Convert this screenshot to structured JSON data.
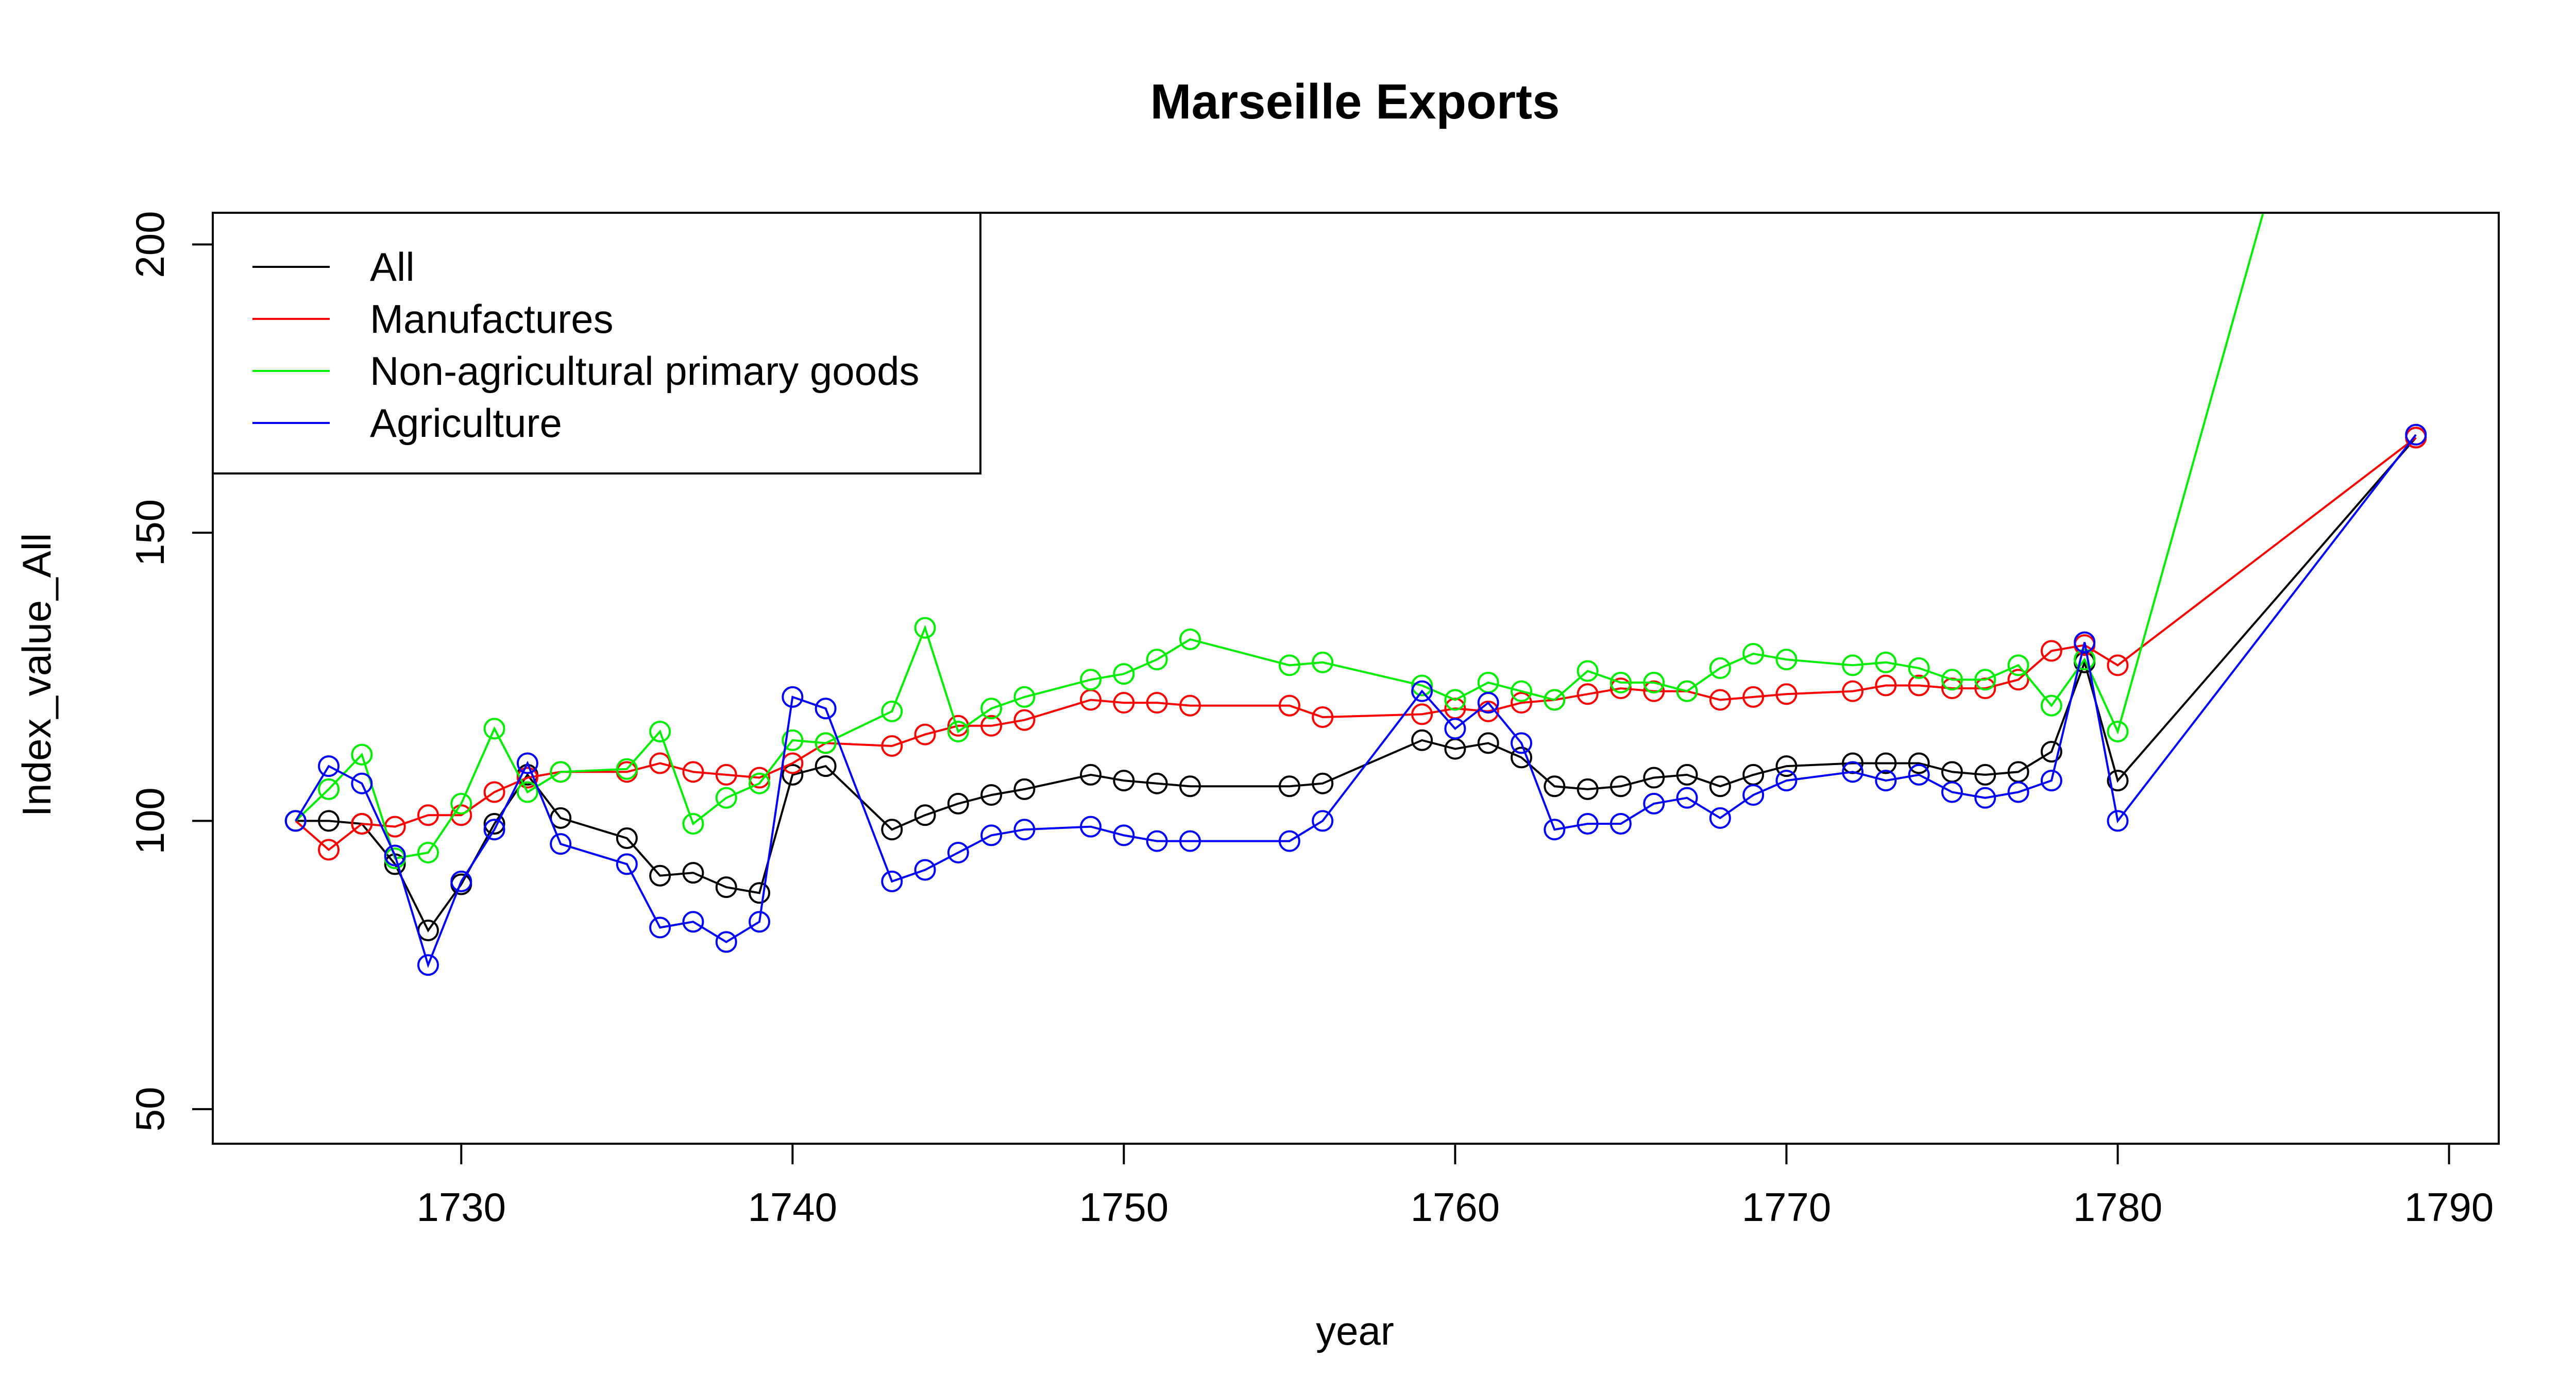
{
  "chart_data": {
    "type": "line",
    "title": "Marseille Exports",
    "xlabel": "year",
    "ylabel": "Index_value_All",
    "xlim": [
      1722.5,
      1791.5
    ],
    "ylim": [
      44,
      205.5
    ],
    "x_ticks": [
      1730,
      1740,
      1750,
      1760,
      1770,
      1780,
      1790
    ],
    "y_ticks": [
      50,
      100,
      150,
      200
    ],
    "grid": false,
    "legend_position": "top-left",
    "markers": "open-circle",
    "series": [
      {
        "name": "All",
        "color": "#000000",
        "points": [
          [
            1725,
            100
          ],
          [
            1726,
            100
          ],
          [
            1727,
            99.5
          ],
          [
            1728,
            92.5
          ],
          [
            1729,
            81
          ],
          [
            1730,
            89
          ],
          [
            1731,
            99.5
          ],
          [
            1732,
            108
          ],
          [
            1733,
            100.5
          ],
          [
            1735,
            97
          ],
          [
            1736,
            90.5
          ],
          [
            1737,
            91
          ],
          [
            1738,
            88.5
          ],
          [
            1739,
            87.5
          ],
          [
            1740,
            108
          ],
          [
            1741,
            109.5
          ],
          [
            1743,
            98.5
          ],
          [
            1744,
            101
          ],
          [
            1745,
            103
          ],
          [
            1746,
            104.5
          ],
          [
            1747,
            105.5
          ],
          [
            1749,
            108
          ],
          [
            1750,
            107
          ],
          [
            1751,
            106.5
          ],
          [
            1752,
            106
          ],
          [
            1755,
            106
          ],
          [
            1756,
            106.5
          ],
          [
            1759,
            114
          ],
          [
            1760,
            112.5
          ],
          [
            1761,
            113.5
          ],
          [
            1762,
            111
          ],
          [
            1763,
            106
          ],
          [
            1764,
            105.5
          ],
          [
            1765,
            106
          ],
          [
            1766,
            107.5
          ],
          [
            1767,
            108
          ],
          [
            1768,
            106
          ],
          [
            1769,
            108
          ],
          [
            1770,
            109.5
          ],
          [
            1772,
            110
          ],
          [
            1773,
            110
          ],
          [
            1774,
            110
          ],
          [
            1775,
            108.5
          ],
          [
            1776,
            108
          ],
          [
            1777,
            108.5
          ],
          [
            1778,
            112
          ],
          [
            1779,
            127.5
          ],
          [
            1780,
            107
          ],
          [
            1789,
            166.5
          ]
        ]
      },
      {
        "name": "Manufactures",
        "color": "#ff0000",
        "points": [
          [
            1725,
            100
          ],
          [
            1726,
            95
          ],
          [
            1727,
            99.5
          ],
          [
            1728,
            99
          ],
          [
            1729,
            101
          ],
          [
            1730,
            101
          ],
          [
            1731,
            105
          ],
          [
            1732,
            107.5
          ],
          [
            1733,
            108.5
          ],
          [
            1735,
            108.5
          ],
          [
            1736,
            110
          ],
          [
            1737,
            108.5
          ],
          [
            1738,
            108
          ],
          [
            1739,
            107.5
          ],
          [
            1740,
            110
          ],
          [
            1741,
            113.5
          ],
          [
            1743,
            113
          ],
          [
            1744,
            115
          ],
          [
            1745,
            116.5
          ],
          [
            1746,
            116.5
          ],
          [
            1747,
            117.5
          ],
          [
            1749,
            121
          ],
          [
            1750,
            120.5
          ],
          [
            1751,
            120.5
          ],
          [
            1752,
            120
          ],
          [
            1755,
            120
          ],
          [
            1756,
            118
          ],
          [
            1759,
            118.5
          ],
          [
            1760,
            119.5
          ],
          [
            1761,
            119
          ],
          [
            1762,
            120.5
          ],
          [
            1763,
            121
          ],
          [
            1764,
            122
          ],
          [
            1765,
            123
          ],
          [
            1766,
            122.5
          ],
          [
            1767,
            122.5
          ],
          [
            1768,
            121
          ],
          [
            1769,
            121.5
          ],
          [
            1770,
            122
          ],
          [
            1772,
            122.5
          ],
          [
            1773,
            123.5
          ],
          [
            1774,
            123.5
          ],
          [
            1775,
            123
          ],
          [
            1776,
            123
          ],
          [
            1777,
            124.5
          ],
          [
            1778,
            129.5
          ],
          [
            1779,
            130.5
          ],
          [
            1780,
            127
          ],
          [
            1789,
            166.5
          ]
        ]
      },
      {
        "name": "Non-agricultural primary goods",
        "color": "#00ee00",
        "points": [
          [
            1725,
            100
          ],
          [
            1726,
            105.5
          ],
          [
            1727,
            111.5
          ],
          [
            1728,
            93.5
          ],
          [
            1729,
            94.5
          ],
          [
            1730,
            103
          ],
          [
            1731,
            116
          ],
          [
            1732,
            105
          ],
          [
            1733,
            108.5
          ],
          [
            1735,
            109
          ],
          [
            1736,
            115.5
          ],
          [
            1737,
            99.5
          ],
          [
            1738,
            104
          ],
          [
            1739,
            106.5
          ],
          [
            1740,
            114
          ],
          [
            1741,
            113.5
          ],
          [
            1743,
            119
          ],
          [
            1744,
            133.5
          ],
          [
            1745,
            115.5
          ],
          [
            1746,
            119.5
          ],
          [
            1747,
            121.5
          ],
          [
            1749,
            124.5
          ],
          [
            1750,
            125.5
          ],
          [
            1751,
            128
          ],
          [
            1752,
            131.5
          ],
          [
            1755,
            127
          ],
          [
            1756,
            127.5
          ],
          [
            1759,
            123.5
          ],
          [
            1760,
            121
          ],
          [
            1761,
            124
          ],
          [
            1762,
            122.5
          ],
          [
            1763,
            121
          ],
          [
            1764,
            126
          ],
          [
            1765,
            124
          ],
          [
            1766,
            124
          ],
          [
            1767,
            122.5
          ],
          [
            1768,
            126.5
          ],
          [
            1769,
            129
          ],
          [
            1770,
            128
          ],
          [
            1772,
            127
          ],
          [
            1773,
            127.5
          ],
          [
            1774,
            126.5
          ],
          [
            1775,
            124.5
          ],
          [
            1776,
            124.5
          ],
          [
            1777,
            127
          ],
          [
            1778,
            120
          ],
          [
            1779,
            128
          ],
          [
            1780,
            115.5
          ],
          [
            1789,
            300
          ]
        ]
      },
      {
        "name": "Agriculture",
        "color": "#0000ff",
        "points": [
          [
            1725,
            100
          ],
          [
            1726,
            109.5
          ],
          [
            1727,
            106.5
          ],
          [
            1728,
            94
          ],
          [
            1729,
            75
          ],
          [
            1730,
            89.5
          ],
          [
            1731,
            98.5
          ],
          [
            1732,
            110
          ],
          [
            1733,
            96
          ],
          [
            1735,
            92.5
          ],
          [
            1736,
            81.5
          ],
          [
            1737,
            82.5
          ],
          [
            1738,
            79
          ],
          [
            1739,
            82.5
          ],
          [
            1740,
            121.5
          ],
          [
            1741,
            119.5
          ],
          [
            1743,
            89.5
          ],
          [
            1744,
            91.5
          ],
          [
            1745,
            94.5
          ],
          [
            1746,
            97.5
          ],
          [
            1747,
            98.5
          ],
          [
            1749,
            99
          ],
          [
            1750,
            97.5
          ],
          [
            1751,
            96.5
          ],
          [
            1752,
            96.5
          ],
          [
            1755,
            96.5
          ],
          [
            1756,
            100
          ],
          [
            1759,
            122.5
          ],
          [
            1760,
            116
          ],
          [
            1761,
            120.5
          ],
          [
            1762,
            113.5
          ],
          [
            1763,
            98.5
          ],
          [
            1764,
            99.5
          ],
          [
            1765,
            99.5
          ],
          [
            1766,
            103
          ],
          [
            1767,
            104
          ],
          [
            1768,
            100.5
          ],
          [
            1769,
            104.5
          ],
          [
            1770,
            107
          ],
          [
            1772,
            108.5
          ],
          [
            1773,
            107
          ],
          [
            1774,
            108
          ],
          [
            1775,
            105
          ],
          [
            1776,
            104
          ],
          [
            1777,
            105
          ],
          [
            1778,
            107
          ],
          [
            1779,
            131
          ],
          [
            1780,
            100
          ],
          [
            1789,
            167
          ]
        ]
      }
    ]
  }
}
